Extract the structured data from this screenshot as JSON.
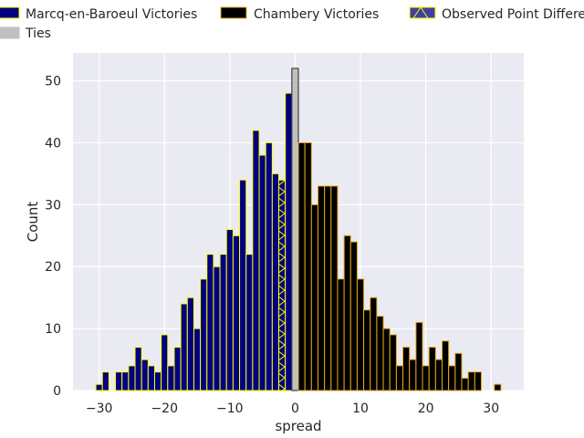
{
  "chart_data": {
    "type": "bar",
    "title": "",
    "xlabel": "spread",
    "ylabel": "Count",
    "xlim": [
      -34,
      35
    ],
    "ylim": [
      0,
      54.5
    ],
    "xticks": [
      -30,
      -20,
      -10,
      0,
      10,
      20,
      30
    ],
    "yticks": [
      0,
      10,
      20,
      30,
      40,
      50
    ],
    "grid": true,
    "legend_position": "top",
    "bin_width": 1,
    "colors": {
      "plot_background": "#eaeaf2",
      "grid": "#ffffff",
      "marcq": "#000080",
      "chambery": "#000000",
      "ties": "#c0c0c0",
      "observed": "#4040a0",
      "yellow_edge": "#ffff00",
      "orange_edge": "#e6a817"
    },
    "legend": [
      {
        "key": "marcq",
        "label": "Marcq-en-Baroeul Victories"
      },
      {
        "key": "chambery",
        "label": "Chambery Victories"
      },
      {
        "key": "observed",
        "label": "Observed Point Differe"
      },
      {
        "key": "ties",
        "label": "Ties"
      }
    ],
    "series": [
      {
        "name": "Marcq-en-Baroeul Victories",
        "x": [
          -30,
          -29,
          -27,
          -26,
          -25,
          -24,
          -23,
          -22,
          -21,
          -20,
          -19,
          -18,
          -17,
          -16,
          -15,
          -14,
          -13,
          -12,
          -11,
          -10,
          -9,
          -8,
          -7,
          -6,
          -5,
          -4,
          -3,
          -2,
          -1
        ],
        "values": [
          1,
          3,
          3,
          3,
          4,
          7,
          5,
          4,
          3,
          9,
          4,
          7,
          14,
          15,
          10,
          18,
          22,
          20,
          22,
          26,
          25,
          34,
          22,
          42,
          38,
          40,
          35,
          34,
          48
        ]
      },
      {
        "name": "Ties",
        "x": [
          0
        ],
        "values": [
          52
        ]
      },
      {
        "name": "Chambery Victories",
        "x": [
          1,
          2,
          3,
          4,
          5,
          6,
          7,
          8,
          9,
          10,
          11,
          12,
          13,
          14,
          15,
          16,
          17,
          18,
          19,
          20,
          21,
          22,
          23,
          24,
          25,
          26,
          27,
          28,
          31
        ],
        "values": [
          40,
          40,
          30,
          33,
          33,
          33,
          18,
          25,
          24,
          18,
          13,
          15,
          12,
          10,
          9,
          4,
          7,
          5,
          11,
          4,
          7,
          5,
          8,
          4,
          6,
          2,
          3,
          3,
          1
        ]
      }
    ],
    "observed_point_difference": -2
  }
}
